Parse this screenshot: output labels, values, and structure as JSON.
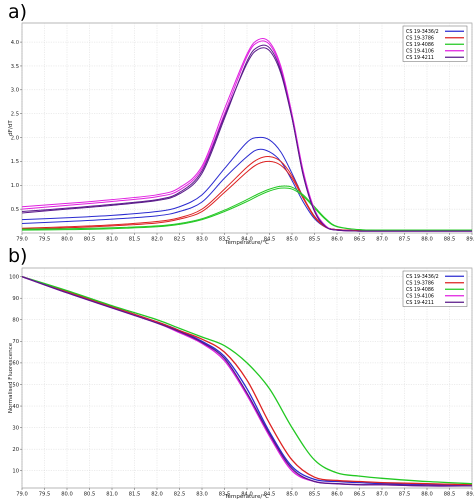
{
  "panels": [
    {
      "letter": "a)",
      "chart_data": {
        "type": "line",
        "title": "",
        "xlabel": "Temperature/°C",
        "ylabel": "dF/dT",
        "xlim": [
          79.0,
          89.0
        ],
        "ylim": [
          0,
          4.4
        ],
        "xticks": [
          "79.0",
          "79.5",
          "80.0",
          "80.5",
          "81.0",
          "81.5",
          "82.0",
          "82.5",
          "83.0",
          "83.5",
          "84.0",
          "84.5",
          "85.0",
          "85.5",
          "86.0",
          "86.5",
          "87.0",
          "87.5",
          "88.0",
          "88.5",
          "89.0"
        ],
        "yticks": [
          "0.5",
          "1.0",
          "1.5",
          "2.0",
          "2.5",
          "3.0",
          "3.5",
          "4.0"
        ],
        "grid": true,
        "legend_position": "top-right",
        "legend": [
          "CS 19-3436/2",
          "CS 19-3786",
          "CS 19-4086",
          "CS 19-4106",
          "CS 19-4211"
        ],
        "x": [
          79.0,
          80.0,
          81.0,
          82.0,
          82.5,
          83.0,
          83.5,
          84.0,
          84.25,
          84.5,
          84.75,
          85.0,
          85.25,
          85.5,
          85.75,
          86.0,
          86.5,
          87.0,
          88.0,
          89.0
        ],
        "series": [
          {
            "name": "CS 19-3436/2",
            "color": "#2b2bd0",
            "values": [
              0.28,
              0.32,
              0.37,
              0.45,
              0.55,
              0.8,
              1.35,
              1.9,
              2.0,
              1.95,
              1.7,
              1.25,
              0.75,
              0.35,
              0.13,
              0.07,
              0.05,
              0.05,
              0.05,
              0.05
            ]
          },
          {
            "name": "CS 19-3436/2",
            "color": "#2b2bd0",
            "values": [
              0.2,
              0.24,
              0.29,
              0.36,
              0.45,
              0.65,
              1.15,
              1.6,
              1.75,
              1.7,
              1.5,
              1.1,
              0.65,
              0.3,
              0.12,
              0.07,
              0.05,
              0.05,
              0.05,
              0.05
            ]
          },
          {
            "name": "CS 19-3786",
            "color": "#dd2222",
            "values": [
              0.1,
              0.13,
              0.17,
              0.24,
              0.32,
              0.5,
              0.92,
              1.38,
              1.55,
              1.6,
              1.5,
              1.2,
              0.75,
              0.35,
              0.13,
              0.07,
              0.05,
              0.05,
              0.05,
              0.05
            ]
          },
          {
            "name": "CS 19-3786",
            "color": "#dd2222",
            "values": [
              0.08,
              0.11,
              0.15,
              0.21,
              0.29,
              0.45,
              0.85,
              1.28,
              1.45,
              1.5,
              1.42,
              1.15,
              0.72,
              0.33,
              0.12,
              0.07,
              0.05,
              0.05,
              0.05,
              0.05
            ]
          },
          {
            "name": "CS 19-4086",
            "color": "#22c822",
            "values": [
              0.08,
              0.09,
              0.11,
              0.15,
              0.2,
              0.3,
              0.48,
              0.7,
              0.82,
              0.92,
              0.98,
              0.96,
              0.8,
              0.55,
              0.3,
              0.14,
              0.07,
              0.06,
              0.06,
              0.06
            ]
          },
          {
            "name": "CS 19-4086",
            "color": "#22c822",
            "values": [
              0.06,
              0.07,
              0.09,
              0.13,
              0.18,
              0.28,
              0.45,
              0.66,
              0.78,
              0.88,
              0.94,
              0.92,
              0.77,
              0.52,
              0.28,
              0.13,
              0.07,
              0.06,
              0.06,
              0.06
            ]
          },
          {
            "name": "CS 19-4106",
            "color": "#e020e0",
            "values": [
              0.55,
              0.62,
              0.7,
              0.8,
              0.95,
              1.4,
              2.6,
              3.75,
              4.05,
              4.0,
              3.5,
              2.5,
              1.3,
              0.5,
              0.15,
              0.06,
              0.04,
              0.04,
              0.04,
              0.04
            ]
          },
          {
            "name": "CS 19-4106",
            "color": "#e020e0",
            "values": [
              0.5,
              0.58,
              0.66,
              0.76,
              0.9,
              1.35,
              2.5,
              3.7,
              4.0,
              3.95,
              3.45,
              2.45,
              1.25,
              0.48,
              0.14,
              0.06,
              0.04,
              0.04,
              0.04,
              0.04
            ]
          },
          {
            "name": "CS 19-4211",
            "color": "#5a1a8a",
            "values": [
              0.45,
              0.52,
              0.6,
              0.7,
              0.85,
              1.3,
              2.45,
              3.55,
              3.85,
              3.82,
              3.35,
              2.4,
              1.2,
              0.45,
              0.13,
              0.06,
              0.04,
              0.04,
              0.04,
              0.04
            ]
          },
          {
            "name": "CS 19-4211",
            "color": "#5a1a8a",
            "values": [
              0.42,
              0.5,
              0.58,
              0.68,
              0.82,
              1.25,
              2.4,
              3.6,
              3.9,
              3.88,
              3.4,
              2.42,
              1.22,
              0.46,
              0.13,
              0.06,
              0.04,
              0.04,
              0.04,
              0.04
            ]
          }
        ]
      }
    },
    {
      "letter": "b)",
      "chart_data": {
        "type": "line",
        "title": "",
        "xlabel": "Temperature/°C",
        "ylabel": "Normalised Fluorescence",
        "xlim": [
          79.0,
          89.0
        ],
        "ylim": [
          2,
          104
        ],
        "xticks": [
          "79.0",
          "79.5",
          "80.0",
          "80.5",
          "81.0",
          "81.5",
          "82.0",
          "82.5",
          "83.0",
          "83.5",
          "84.0",
          "84.5",
          "85.0",
          "85.5",
          "86.0",
          "86.5",
          "87.0",
          "87.5",
          "88.0",
          "88.5",
          "89.0"
        ],
        "yticks": [
          "10",
          "20",
          "30",
          "40",
          "50",
          "60",
          "70",
          "80",
          "90",
          "100"
        ],
        "grid": true,
        "legend_position": "top-right",
        "legend": [
          "CS 19-3436/2",
          "CS 19-3786",
          "CS 19-4086",
          "CS 19-4106",
          "CS 19-4211"
        ],
        "x": [
          79.0,
          80.0,
          81.0,
          82.0,
          82.5,
          83.0,
          83.5,
          84.0,
          84.5,
          85.0,
          85.5,
          86.0,
          86.5,
          87.0,
          88.0,
          89.0
        ],
        "series": [
          {
            "name": "CS 19-3436/2",
            "color": "#2b2bd0",
            "values": [
              100,
              93,
              86,
              79,
              75,
              70,
              63,
              48,
              28,
              12,
              6,
              5,
              4.5,
              4,
              3.5,
              3
            ]
          },
          {
            "name": "CS 19-3786",
            "color": "#dd2222",
            "values": [
              100,
              93,
              86,
              79,
              75,
              71,
              65,
              52,
              32,
              15,
              7,
              5.5,
              5,
              4.5,
              4,
              3.5
            ]
          },
          {
            "name": "CS 19-4086",
            "color": "#22c822",
            "values": [
              100,
              93.5,
              86.5,
              80,
              76,
              72,
              68,
              60,
              48,
              30,
              15,
              9,
              7.5,
              6.5,
              5,
              4
            ]
          },
          {
            "name": "CS 19-4106",
            "color": "#e020e0",
            "values": [
              100,
              92.5,
              85.5,
              78.5,
              74,
              69,
              61,
              45,
              26,
              10,
              5,
              4,
              3.5,
              3.5,
              3,
              3
            ]
          },
          {
            "name": "CS 19-4211",
            "color": "#5a1a8a",
            "values": [
              100,
              92.5,
              85.5,
              78.5,
              74.5,
              69.5,
              62,
              46,
              27,
              11,
              5,
              4,
              3.5,
              3.5,
              3,
              3
            ]
          }
        ]
      }
    }
  ]
}
